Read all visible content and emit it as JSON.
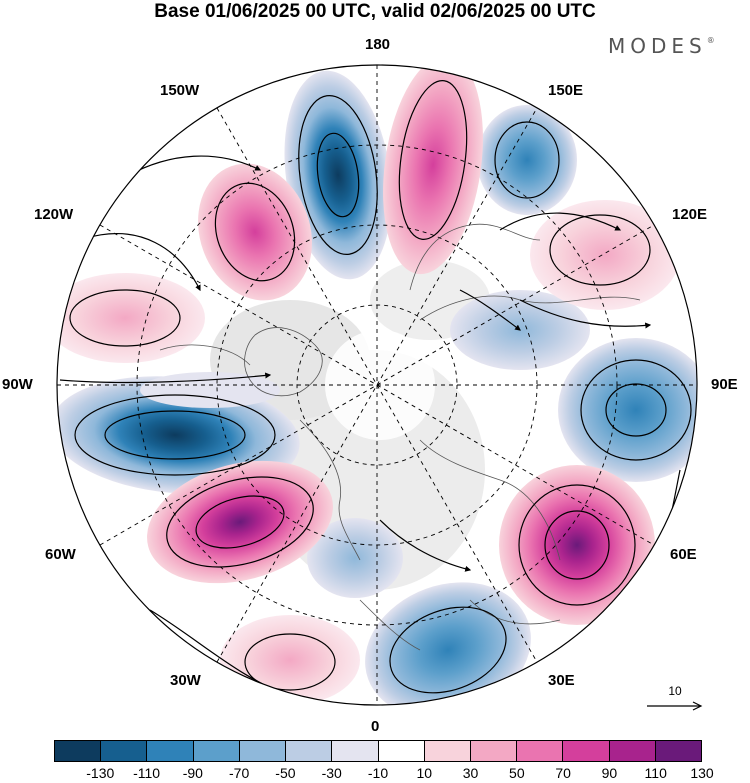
{
  "title": "Base 01/06/2025 00 UTC, valid 02/06/2025 00 UTC",
  "logo": "MODES",
  "logo_mark": "®",
  "longitude_labels": {
    "lon_180": "180",
    "lon_150e": "150E",
    "lon_120e": "120E",
    "lon_90e": "90E",
    "lon_60e": "60E",
    "lon_30e": "30E",
    "lon_0": "0",
    "lon_30w": "30W",
    "lon_60w": "60W",
    "lon_90w": "90W",
    "lon_120w": "120W",
    "lon_150w": "150W"
  },
  "reference_vector": {
    "value": "10"
  },
  "colorbar": {
    "labels": [
      "-130",
      "-110",
      "-90",
      "-70",
      "-50",
      "-30",
      "-10",
      "10",
      "30",
      "50",
      "70",
      "90",
      "110",
      "130"
    ],
    "colors": [
      "#0d3b5e",
      "#165f8f",
      "#2f82b8",
      "#5c9fcb",
      "#8fb8da",
      "#bccde4",
      "#e4e4f0",
      "#ffffff",
      "#f8d3dc",
      "#f3a8c4",
      "#ea74b0",
      "#d43f9c",
      "#a8238d",
      "#6a1a7a"
    ]
  },
  "anomaly_centers": [
    {
      "region": "Atlantic low near 90W-60W",
      "sign": "negative",
      "value": -110
    },
    {
      "region": "near 60W",
      "sign": "positive",
      "value": 110
    },
    {
      "region": "near 60E",
      "sign": "positive",
      "value": 110
    },
    {
      "region": "near 90E",
      "sign": "negative",
      "value": -90
    },
    {
      "region": "near 30E",
      "sign": "negative",
      "value": -70
    },
    {
      "region": "near 180 west",
      "sign": "negative",
      "value": -110
    },
    {
      "region": "near 180 east",
      "sign": "positive",
      "value": 90
    },
    {
      "region": "near 150E",
      "sign": "negative",
      "value": -70
    },
    {
      "region": "near 120E",
      "sign": "positive",
      "value": 50
    },
    {
      "region": "near 135W",
      "sign": "positive",
      "value": 90
    }
  ]
}
